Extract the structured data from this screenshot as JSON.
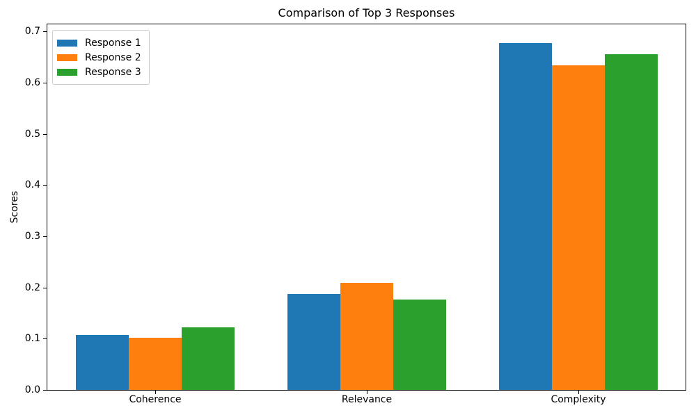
{
  "chart_data": {
    "type": "bar",
    "title": "Comparison of Top 3 Responses",
    "xlabel": "",
    "ylabel": "Scores",
    "categories": [
      "Coherence",
      "Relevance",
      "Complexity"
    ],
    "series": [
      {
        "name": "Response 1",
        "color": "#1f77b4",
        "values": [
          0.107,
          0.187,
          0.678
        ]
      },
      {
        "name": "Response 2",
        "color": "#ff7f0e",
        "values": [
          0.102,
          0.209,
          0.634
        ]
      },
      {
        "name": "Response 3",
        "color": "#2ca02c",
        "values": [
          0.122,
          0.177,
          0.655
        ]
      }
    ],
    "ylim": [
      0.0,
      0.714
    ],
    "yticks": [
      0.0,
      0.1,
      0.2,
      0.3,
      0.4,
      0.5,
      0.6,
      0.7
    ],
    "grid": false,
    "legend_position": "upper left",
    "axis_color": "#000000",
    "background_color": "#ffffff"
  }
}
